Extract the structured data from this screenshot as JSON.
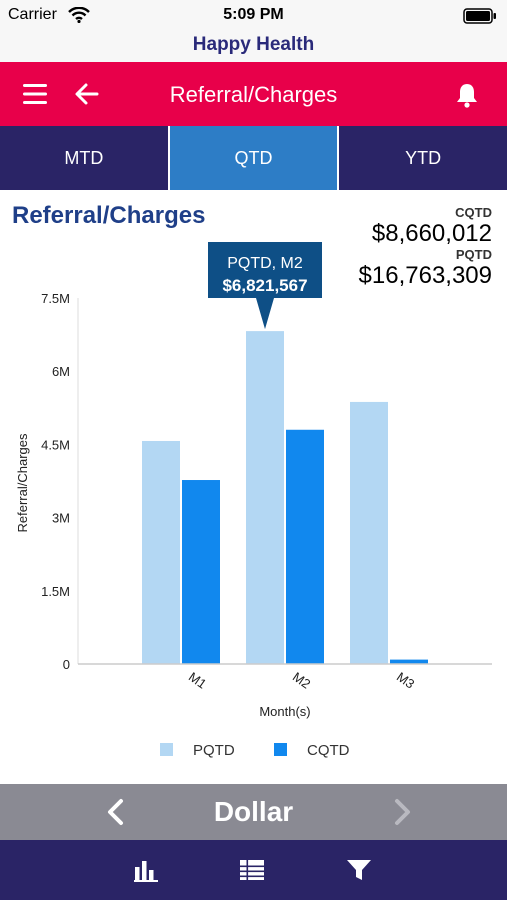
{
  "status_bar": {
    "carrier": "Carrier",
    "time": "5:09 PM"
  },
  "app": {
    "title": "Happy Health"
  },
  "navbar": {
    "title": "Referral/Charges",
    "icons": [
      "menu-icon",
      "back-arrow-icon",
      "bell-icon"
    ]
  },
  "tabs": [
    {
      "label": "MTD",
      "active": false
    },
    {
      "label": "QTD",
      "active": true
    },
    {
      "label": "YTD",
      "active": false
    }
  ],
  "section": {
    "title": "Referral/Charges",
    "summary": [
      {
        "label": "CQTD",
        "value": "$8,660,012"
      },
      {
        "label": "PQTD",
        "value": "$16,763,309"
      }
    ]
  },
  "tooltip": {
    "line1": "PQTD, M2",
    "line2": "$6,821,567"
  },
  "chart_data": {
    "type": "bar",
    "categories": [
      "M1",
      "M2",
      "M3"
    ],
    "series": [
      {
        "name": "PQTD",
        "values": [
          4570000,
          6821567,
          5370000
        ],
        "color": "#b3d7f3"
      },
      {
        "name": "CQTD",
        "values": [
          3770000,
          4800000,
          90000
        ],
        "color": "#1188ee"
      }
    ],
    "xlabel": "Month(s)",
    "ylabel": "Referral/Charges",
    "ylim": [
      0,
      7500000
    ],
    "yticks": [
      {
        "value": 0,
        "label": "0"
      },
      {
        "value": 1500000,
        "label": "1.5M"
      },
      {
        "value": 3000000,
        "label": "3M"
      },
      {
        "value": 4500000,
        "label": "4.5M"
      },
      {
        "value": 6000000,
        "label": "6M"
      },
      {
        "value": 7500000,
        "label": "7.5M"
      }
    ],
    "legend_position": "bottom"
  },
  "selector": {
    "label": "Dollar",
    "icons": [
      "chevron-left-icon",
      "chevron-right-icon"
    ]
  },
  "toolbar": {
    "icons": [
      "bar-chart-icon",
      "list-icon",
      "filter-icon"
    ]
  },
  "colors": {
    "header_red": "#e8004a",
    "navy": "#2a2466",
    "tab_active": "#2d7dc6",
    "title_blue": "#1f3f88",
    "tooltip_bg": "#0e4f86",
    "selector_gray": "#8a8a93"
  }
}
